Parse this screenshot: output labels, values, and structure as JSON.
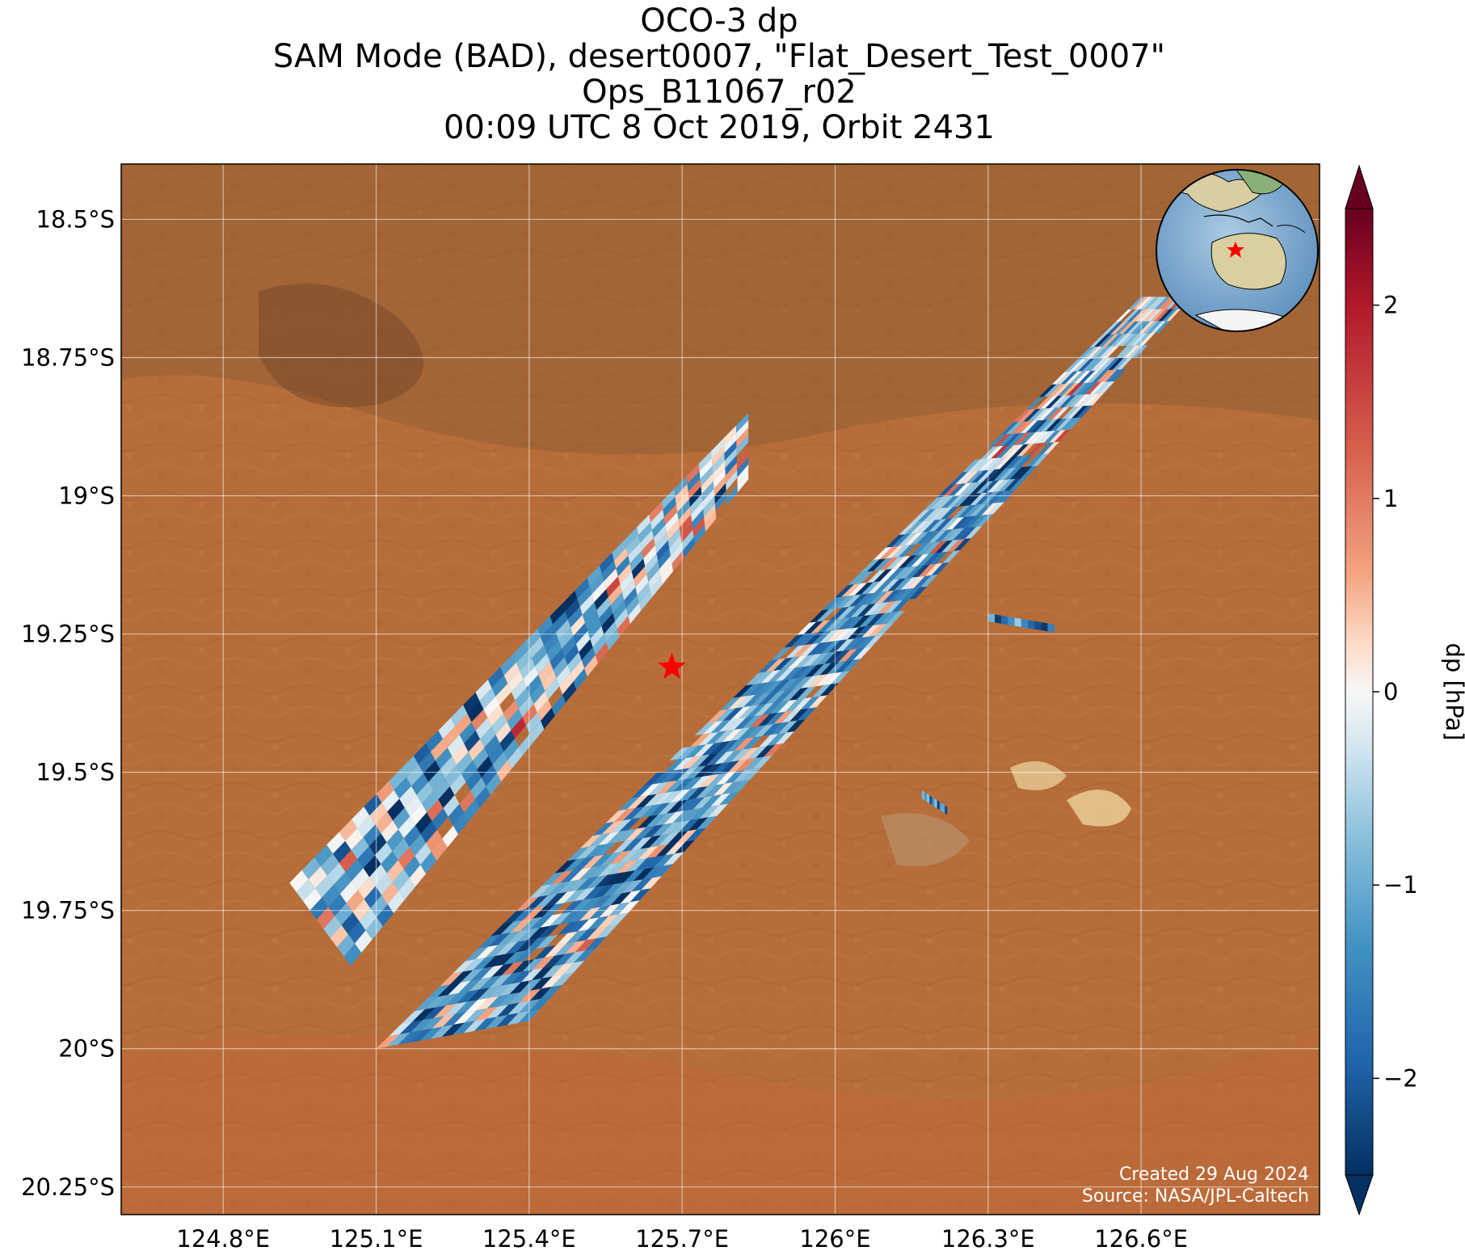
{
  "title": {
    "line1": "OCO-3 dp",
    "line2": "SAM Mode (BAD), desert0007, \"Flat_Desert_Test_0007\"",
    "line3": "Ops_B11067_r02",
    "line4": "00:09 UTC 8 Oct 2019, Orbit 2431"
  },
  "chart_data": {
    "type": "heatmap",
    "map_extent": {
      "lon": [
        124.6,
        126.95
      ],
      "lat": [
        -20.3,
        -18.4
      ]
    },
    "x_ticks": [
      "124.8°E",
      "125.1°E",
      "125.4°E",
      "125.7°E",
      "126°E",
      "126.3°E",
      "126.6°E"
    ],
    "x_tick_values": [
      124.8,
      125.1,
      125.4,
      125.7,
      126.0,
      126.3,
      126.6
    ],
    "y_ticks": [
      "18.5°S",
      "18.75°S",
      "19°S",
      "19.25°S",
      "19.5°S",
      "19.75°S",
      "20°S",
      "20.25°S"
    ],
    "y_tick_values": [
      -18.5,
      -18.75,
      -19.0,
      -19.25,
      -19.5,
      -19.75,
      -20.0,
      -20.25
    ],
    "grid": true,
    "colorbar": {
      "label": "dp [hPa]",
      "range": [
        -2.5,
        2.5
      ],
      "ticks": [
        2,
        1,
        0,
        -1,
        -2
      ],
      "tick_labels": [
        "2",
        "1",
        "0",
        "−1",
        "−2"
      ],
      "colormap": "RdBu_r",
      "extend": "both"
    },
    "target": {
      "lon": 125.68,
      "lat": -19.31,
      "marker": "red-star"
    },
    "swaths": [
      {
        "name": "swath-west",
        "corners": [
          [
            124.93,
            -19.7
          ],
          [
            125.83,
            -18.85
          ],
          [
            125.83,
            -18.97
          ],
          [
            125.05,
            -19.85
          ]
        ],
        "mean_dp": -0.8
      },
      {
        "name": "swath-main",
        "corners": [
          [
            125.1,
            -20.0
          ],
          [
            126.6,
            -18.64
          ],
          [
            126.7,
            -18.64
          ],
          [
            125.4,
            -19.95
          ]
        ],
        "mean_dp": -1.1
      },
      {
        "name": "fragment-east",
        "corners": [
          [
            126.3,
            -19.22
          ],
          [
            126.43,
            -19.24
          ]
        ],
        "mean_dp": -1.5
      },
      {
        "name": "fragment-southeast",
        "corners": [
          [
            126.17,
            -19.54
          ],
          [
            126.22,
            -19.57
          ]
        ],
        "mean_dp": -1.6
      }
    ]
  },
  "inset": {
    "name": "globe-locator",
    "marker": "red-star"
  },
  "credits": {
    "created": "Created 29 Aug 2024",
    "source": "Source: NASA/JPL-Caltech"
  }
}
